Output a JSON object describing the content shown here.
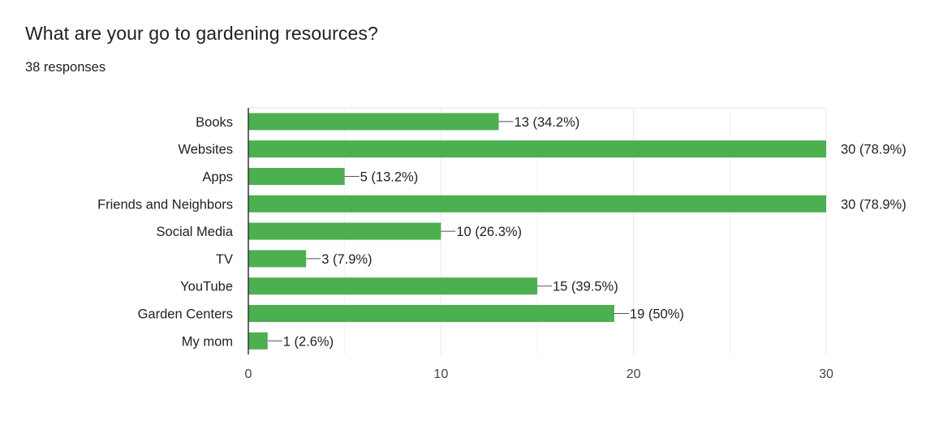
{
  "question": {
    "title": "What are your go to gardening resources?",
    "response_count": "38 responses"
  },
  "colors": {
    "bar": "#4caf50",
    "axis": "#333333",
    "grid": "#e8e8e8",
    "leader": "#555555"
  },
  "chart_data": {
    "type": "bar",
    "orientation": "horizontal",
    "categories": [
      "Books",
      "Websites",
      "Apps",
      "Friends and Neighbors",
      "Social Media",
      "TV",
      "YouTube",
      "Garden Centers",
      "My mom"
    ],
    "values": [
      13,
      30,
      5,
      30,
      10,
      3,
      15,
      19,
      1
    ],
    "data_labels": [
      "13 (34.2%)",
      "30 (78.9%)",
      "5 (13.2%)",
      "30 (78.9%)",
      "10 (26.3%)",
      "3 (7.9%)",
      "15 (39.5%)",
      "19 (50%)",
      "1 (2.6%)"
    ],
    "xlim": [
      0,
      30
    ],
    "xticks": [
      0,
      10,
      20,
      30
    ],
    "minor_gridlines": [
      5,
      15,
      25
    ],
    "grid": true,
    "title": "",
    "xlabel": "",
    "ylabel": ""
  }
}
